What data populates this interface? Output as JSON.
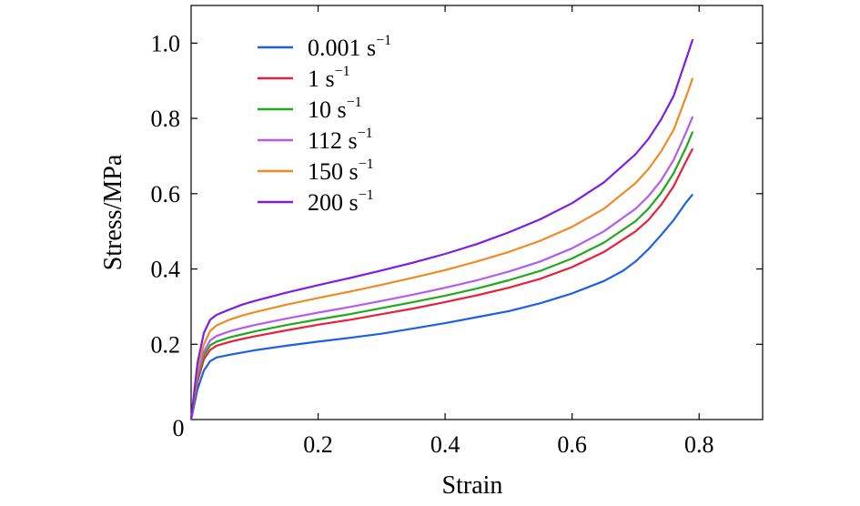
{
  "chart_data": {
    "type": "line",
    "title": "",
    "xlabel": "Strain",
    "ylabel": "Stress/MPa",
    "xlim": [
      0,
      0.9
    ],
    "ylim": [
      0,
      1.1
    ],
    "x_ticks": [
      0.2,
      0.4,
      0.6,
      0.8
    ],
    "x_tick_labels": [
      "0.2",
      "0.4",
      "0.6",
      "0.8"
    ],
    "y_ticks": [
      0.2,
      0.4,
      0.6,
      0.8,
      1.0
    ],
    "y_tick_labels": [
      "0.2",
      "0.4",
      "0.6",
      "0.8",
      "1.0"
    ],
    "origin_label": "0",
    "grid": false,
    "legend_position": "top-left",
    "series": [
      {
        "name": "0.001 s",
        "name_exponent": "−1",
        "color": "#1f5ee8",
        "points": [
          [
            0.0,
            0.0
          ],
          [
            0.01,
            0.08
          ],
          [
            0.02,
            0.13
          ],
          [
            0.03,
            0.155
          ],
          [
            0.04,
            0.165
          ],
          [
            0.06,
            0.172
          ],
          [
            0.08,
            0.178
          ],
          [
            0.1,
            0.184
          ],
          [
            0.15,
            0.196
          ],
          [
            0.2,
            0.207
          ],
          [
            0.25,
            0.217
          ],
          [
            0.3,
            0.228
          ],
          [
            0.35,
            0.242
          ],
          [
            0.4,
            0.256
          ],
          [
            0.45,
            0.272
          ],
          [
            0.5,
            0.288
          ],
          [
            0.55,
            0.309
          ],
          [
            0.6,
            0.335
          ],
          [
            0.65,
            0.368
          ],
          [
            0.68,
            0.395
          ],
          [
            0.7,
            0.42
          ],
          [
            0.72,
            0.452
          ],
          [
            0.74,
            0.49
          ],
          [
            0.76,
            0.53
          ],
          [
            0.78,
            0.578
          ],
          [
            0.79,
            0.598
          ]
        ]
      },
      {
        "name": "1 s",
        "name_exponent": "−1",
        "color": "#e8203a",
        "points": [
          [
            0.0,
            0.0
          ],
          [
            0.01,
            0.1
          ],
          [
            0.02,
            0.16
          ],
          [
            0.03,
            0.185
          ],
          [
            0.04,
            0.196
          ],
          [
            0.06,
            0.206
          ],
          [
            0.08,
            0.214
          ],
          [
            0.1,
            0.221
          ],
          [
            0.15,
            0.237
          ],
          [
            0.2,
            0.252
          ],
          [
            0.25,
            0.265
          ],
          [
            0.3,
            0.28
          ],
          [
            0.35,
            0.295
          ],
          [
            0.4,
            0.312
          ],
          [
            0.45,
            0.33
          ],
          [
            0.5,
            0.35
          ],
          [
            0.55,
            0.374
          ],
          [
            0.6,
            0.405
          ],
          [
            0.65,
            0.445
          ],
          [
            0.7,
            0.5
          ],
          [
            0.72,
            0.53
          ],
          [
            0.74,
            0.57
          ],
          [
            0.76,
            0.62
          ],
          [
            0.78,
            0.688
          ],
          [
            0.79,
            0.72
          ]
        ]
      },
      {
        "name": "10 s",
        "name_exponent": "−1",
        "color": "#22a81c",
        "points": [
          [
            0.0,
            0.0
          ],
          [
            0.01,
            0.11
          ],
          [
            0.02,
            0.17
          ],
          [
            0.03,
            0.197
          ],
          [
            0.04,
            0.207
          ],
          [
            0.06,
            0.218
          ],
          [
            0.08,
            0.226
          ],
          [
            0.1,
            0.234
          ],
          [
            0.15,
            0.251
          ],
          [
            0.2,
            0.266
          ],
          [
            0.25,
            0.28
          ],
          [
            0.3,
            0.296
          ],
          [
            0.35,
            0.312
          ],
          [
            0.4,
            0.329
          ],
          [
            0.45,
            0.348
          ],
          [
            0.5,
            0.37
          ],
          [
            0.55,
            0.395
          ],
          [
            0.6,
            0.428
          ],
          [
            0.65,
            0.47
          ],
          [
            0.7,
            0.527
          ],
          [
            0.72,
            0.56
          ],
          [
            0.74,
            0.602
          ],
          [
            0.76,
            0.655
          ],
          [
            0.78,
            0.725
          ],
          [
            0.79,
            0.765
          ]
        ]
      },
      {
        "name": "112 s",
        "name_exponent": "−1",
        "color": "#b45cf0",
        "points": [
          [
            0.0,
            0.0
          ],
          [
            0.01,
            0.12
          ],
          [
            0.02,
            0.18
          ],
          [
            0.03,
            0.21
          ],
          [
            0.04,
            0.222
          ],
          [
            0.06,
            0.234
          ],
          [
            0.08,
            0.243
          ],
          [
            0.1,
            0.251
          ],
          [
            0.15,
            0.268
          ],
          [
            0.2,
            0.284
          ],
          [
            0.25,
            0.299
          ],
          [
            0.3,
            0.315
          ],
          [
            0.35,
            0.332
          ],
          [
            0.4,
            0.35
          ],
          [
            0.45,
            0.37
          ],
          [
            0.5,
            0.393
          ],
          [
            0.55,
            0.42
          ],
          [
            0.6,
            0.455
          ],
          [
            0.65,
            0.5
          ],
          [
            0.7,
            0.56
          ],
          [
            0.72,
            0.593
          ],
          [
            0.74,
            0.635
          ],
          [
            0.76,
            0.69
          ],
          [
            0.78,
            0.765
          ],
          [
            0.79,
            0.805
          ]
        ]
      },
      {
        "name": "150 s",
        "name_exponent": "−1",
        "color": "#f08a24",
        "points": [
          [
            0.0,
            0.0
          ],
          [
            0.01,
            0.13
          ],
          [
            0.02,
            0.2
          ],
          [
            0.03,
            0.235
          ],
          [
            0.04,
            0.25
          ],
          [
            0.06,
            0.265
          ],
          [
            0.08,
            0.276
          ],
          [
            0.1,
            0.285
          ],
          [
            0.15,
            0.305
          ],
          [
            0.2,
            0.323
          ],
          [
            0.25,
            0.34
          ],
          [
            0.3,
            0.358
          ],
          [
            0.35,
            0.377
          ],
          [
            0.4,
            0.397
          ],
          [
            0.45,
            0.42
          ],
          [
            0.5,
            0.445
          ],
          [
            0.55,
            0.475
          ],
          [
            0.6,
            0.512
          ],
          [
            0.65,
            0.56
          ],
          [
            0.7,
            0.628
          ],
          [
            0.72,
            0.665
          ],
          [
            0.74,
            0.712
          ],
          [
            0.76,
            0.77
          ],
          [
            0.78,
            0.86
          ],
          [
            0.79,
            0.907
          ]
        ]
      },
      {
        "name": "200 s",
        "name_exponent": "−1",
        "color": "#7a1ee8",
        "points": [
          [
            0.0,
            0.0
          ],
          [
            0.01,
            0.15
          ],
          [
            0.02,
            0.23
          ],
          [
            0.03,
            0.265
          ],
          [
            0.04,
            0.278
          ],
          [
            0.06,
            0.292
          ],
          [
            0.08,
            0.305
          ],
          [
            0.1,
            0.315
          ],
          [
            0.15,
            0.337
          ],
          [
            0.2,
            0.357
          ],
          [
            0.25,
            0.376
          ],
          [
            0.3,
            0.396
          ],
          [
            0.35,
            0.417
          ],
          [
            0.4,
            0.44
          ],
          [
            0.45,
            0.466
          ],
          [
            0.5,
            0.497
          ],
          [
            0.55,
            0.532
          ],
          [
            0.6,
            0.575
          ],
          [
            0.65,
            0.63
          ],
          [
            0.7,
            0.705
          ],
          [
            0.72,
            0.745
          ],
          [
            0.74,
            0.797
          ],
          [
            0.76,
            0.86
          ],
          [
            0.78,
            0.96
          ],
          [
            0.79,
            1.01
          ]
        ]
      }
    ]
  }
}
